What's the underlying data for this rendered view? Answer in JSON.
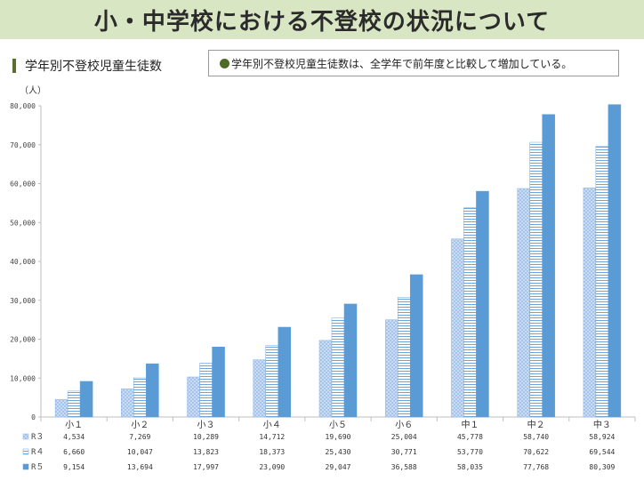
{
  "header": {
    "title": "小・中学校における不登校の状況について"
  },
  "section": {
    "title": "学年別不登校児童生徒数"
  },
  "note": {
    "text": "学年別不登校児童生徒数は、全学年で前年度と比較して増加している。"
  },
  "chart_data": {
    "type": "bar",
    "ylabel": "（人）",
    "ylim": [
      0,
      80000
    ],
    "yticks": [
      "0",
      "10,000",
      "20,000",
      "30,000",
      "40,000",
      "50,000",
      "60,000",
      "70,000",
      "80,000"
    ],
    "categories": [
      "小１",
      "小２",
      "小３",
      "小４",
      "小５",
      "小６",
      "中１",
      "中２",
      "中３"
    ],
    "series": [
      {
        "name": "R３",
        "values": [
          4534,
          7269,
          10289,
          14712,
          19690,
          25004,
          45778,
          58740,
          58924
        ],
        "labels": [
          "4,534",
          "7,269",
          "10,289",
          "14,712",
          "19,690",
          "25,004",
          "45,778",
          "58,740",
          "58,924"
        ]
      },
      {
        "name": "R４",
        "values": [
          6660,
          10047,
          13823,
          18373,
          25430,
          30771,
          53770,
          70622,
          69544
        ],
        "labels": [
          "6,660",
          "10,047",
          "13,823",
          "18,373",
          "25,430",
          "30,771",
          "53,770",
          "70,622",
          "69,544"
        ]
      },
      {
        "name": "R５",
        "values": [
          9154,
          13694,
          17997,
          23090,
          29047,
          36588,
          58035,
          77768,
          80309
        ],
        "labels": [
          "9,154",
          "13,694",
          "17,997",
          "23,090",
          "29,047",
          "36,588",
          "58,035",
          "77,768",
          "80,309"
        ]
      }
    ],
    "grid": false,
    "legend": "data-table-left",
    "colors": [
      "#a9c8ee",
      "#5b9bd5",
      "#5b9bd5"
    ]
  }
}
